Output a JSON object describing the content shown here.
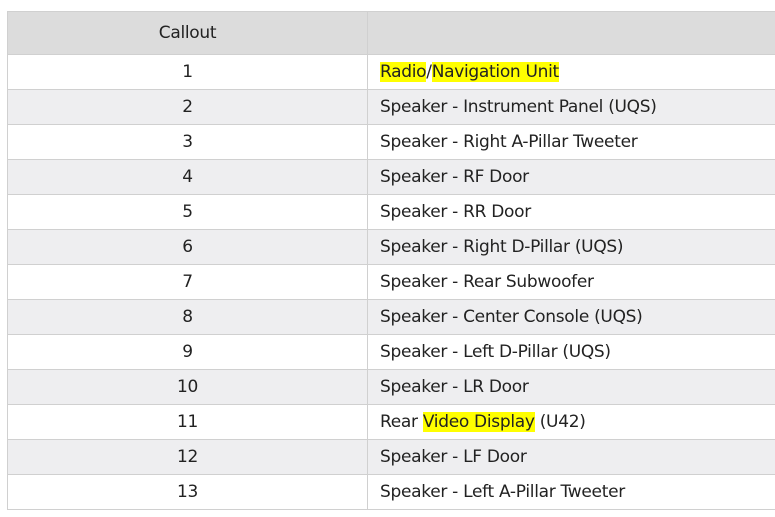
{
  "table": {
    "headers": [
      "Callout",
      ""
    ],
    "highlight_color": "#ffff00",
    "rows": [
      {
        "callout": "1",
        "parts": [
          {
            "text": "Radio",
            "hl": true
          },
          {
            "text": "/",
            "hl": false
          },
          {
            "text": "Navigation Unit",
            "hl": true
          }
        ]
      },
      {
        "callout": "2",
        "parts": [
          {
            "text": "Speaker - Instrument Panel (UQS)",
            "hl": false
          }
        ]
      },
      {
        "callout": "3",
        "parts": [
          {
            "text": "Speaker - Right A-Pillar Tweeter",
            "hl": false
          }
        ]
      },
      {
        "callout": "4",
        "parts": [
          {
            "text": "Speaker - RF Door",
            "hl": false
          }
        ]
      },
      {
        "callout": "5",
        "parts": [
          {
            "text": "Speaker - RR Door",
            "hl": false
          }
        ]
      },
      {
        "callout": "6",
        "parts": [
          {
            "text": "Speaker - Right D-Pillar (UQS)",
            "hl": false
          }
        ]
      },
      {
        "callout": "7",
        "parts": [
          {
            "text": "Speaker - Rear Subwoofer",
            "hl": false
          }
        ]
      },
      {
        "callout": "8",
        "parts": [
          {
            "text": "Speaker - Center Console (UQS)",
            "hl": false
          }
        ]
      },
      {
        "callout": "9",
        "parts": [
          {
            "text": "Speaker - Left D-Pillar (UQS)",
            "hl": false
          }
        ]
      },
      {
        "callout": "10",
        "parts": [
          {
            "text": "Speaker - LR Door",
            "hl": false
          }
        ]
      },
      {
        "callout": "11",
        "parts": [
          {
            "text": "Rear ",
            "hl": false
          },
          {
            "text": "Video Display",
            "hl": true
          },
          {
            "text": " (U42)",
            "hl": false
          }
        ]
      },
      {
        "callout": "12",
        "parts": [
          {
            "text": "Speaker - LF Door",
            "hl": false
          }
        ]
      },
      {
        "callout": "13",
        "parts": [
          {
            "text": "Speaker - Left A-Pillar Tweeter",
            "hl": false
          }
        ]
      }
    ]
  }
}
